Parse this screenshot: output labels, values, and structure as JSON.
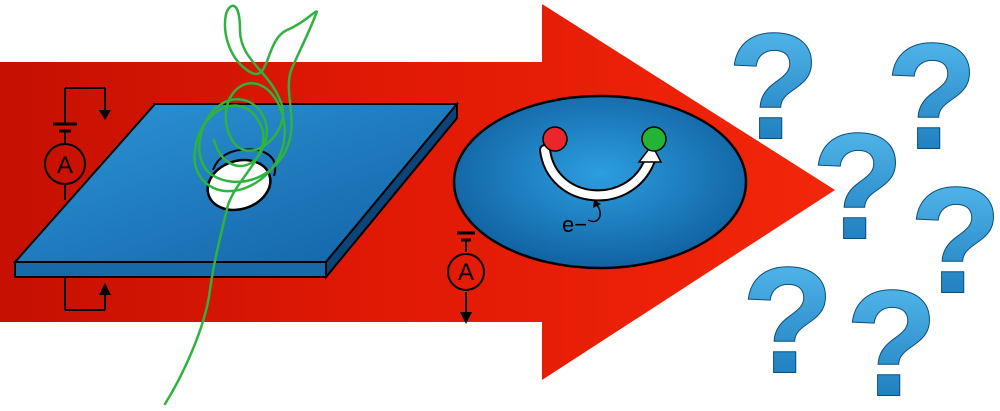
{
  "diagram": {
    "left_ammeter": {
      "symbol": "A"
    },
    "right_ammeter": {
      "symbol": "A"
    },
    "electron": {
      "label": "e−"
    },
    "question_marks": [
      "?",
      "?",
      "?",
      "?",
      "?",
      "?",
      "?"
    ],
    "colors": {
      "arrow": "#e51d06",
      "arrow_dark": "#c21203",
      "membrane": "#1772b8",
      "membrane_light": "#33a3e0",
      "membrane_side": "#0d4f86",
      "dna_strand": "#2fb240",
      "molecule_start": "#e8262b",
      "molecule_end": "#23b335",
      "question_mark": "#1a8cd2"
    }
  }
}
